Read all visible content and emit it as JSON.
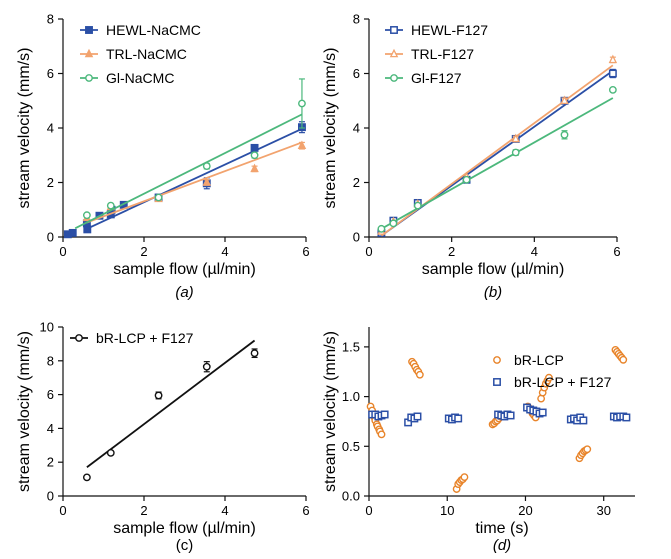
{
  "colors": {
    "blue": "#2B4FA6",
    "orange": "#F2A36E",
    "green": "#4CB87C",
    "black": "#111111",
    "orange_marker": "#E8842A"
  },
  "chart_data": [
    {
      "id": "a",
      "type": "scatter",
      "panel_label": "(a)",
      "xlabel": "sample flow (µl/min)",
      "ylabel": "stream velocity (mm/s)",
      "xlim": [
        0,
        6
      ],
      "ylim": [
        0,
        8
      ],
      "xticks": [
        0,
        2,
        4,
        6
      ],
      "yticks": [
        0,
        2,
        4,
        6,
        8
      ],
      "legend_position": "top-left",
      "series": [
        {
          "name": "HEWL-NaCMC",
          "color": "#2B4FA6",
          "marker": "square-filled",
          "x": [
            0.12,
            0.24,
            0.59,
            0.6,
            0.9,
            1.18,
            1.2,
            1.5,
            2.36,
            3.55,
            4.73,
            5.9
          ],
          "y": [
            0.1,
            0.15,
            0.5,
            0.28,
            0.78,
            0.83,
            1.0,
            1.18,
            1.45,
            1.97,
            3.27,
            4.03
          ],
          "err": [
            0,
            0,
            0,
            0,
            0,
            0,
            0.07,
            0,
            0.05,
            0.2,
            0.1,
            0.2
          ],
          "fit": [
            [
              0.59,
              0.3
            ],
            [
              5.9,
              3.97
            ]
          ]
        },
        {
          "name": "TRL-NaCMC",
          "color": "#F2A36E",
          "marker": "triangle-filled",
          "x": [
            0.59,
            1.18,
            2.36,
            3.55,
            4.73,
            5.9
          ],
          "y": [
            0.7,
            1.1,
            1.4,
            2.0,
            2.5,
            3.35
          ],
          "err": [
            0,
            0,
            0.05,
            0.1,
            0.1,
            0.12
          ],
          "fit": [
            [
              0.59,
              0.53
            ],
            [
              5.9,
              3.47
            ]
          ]
        },
        {
          "name": "Gl-NaCMC",
          "color": "#4CB87C",
          "marker": "circle-open",
          "x": [
            0.59,
            1.18,
            2.36,
            3.55,
            4.73,
            5.9
          ],
          "y": [
            0.8,
            1.15,
            1.45,
            2.6,
            3.0,
            4.9
          ],
          "err": [
            0,
            0,
            0,
            0.1,
            0.1,
            0.9
          ],
          "fit": [
            [
              0.3,
              0.32
            ],
            [
              5.9,
              4.5
            ]
          ]
        }
      ]
    },
    {
      "id": "b",
      "type": "scatter",
      "panel_label": "(b)",
      "xlabel": "sample flow (µl/min)",
      "ylabel": "stream velocity (mm/s)",
      "xlim": [
        0,
        6
      ],
      "ylim": [
        0,
        8
      ],
      "xticks": [
        0,
        2,
        4,
        6
      ],
      "yticks": [
        0,
        2,
        4,
        6,
        8
      ],
      "legend_position": "top-left",
      "series": [
        {
          "name": "HEWL-F127",
          "color": "#2B4FA6",
          "marker": "square-open",
          "x": [
            0.3,
            0.59,
            1.18,
            2.36,
            3.55,
            4.73,
            5.9
          ],
          "y": [
            0.15,
            0.6,
            1.25,
            2.1,
            3.6,
            5.0,
            6.0
          ],
          "err": [
            0,
            0,
            0.05,
            0,
            0.1,
            0.1,
            0.15
          ],
          "fit": [
            [
              0.3,
              0.05
            ],
            [
              5.9,
              6.1
            ]
          ]
        },
        {
          "name": "TRL-F127",
          "color": "#F2A36E",
          "marker": "triangle-open",
          "x": [
            0.3,
            0.59,
            1.18,
            2.36,
            3.55,
            4.73,
            5.9
          ],
          "y": [
            0.2,
            0.55,
            1.2,
            2.2,
            3.6,
            5.0,
            6.5
          ],
          "err": [
            0,
            0,
            0,
            0,
            0.1,
            0.1,
            0.1
          ],
          "fit": [
            [
              0.3,
              0.05
            ],
            [
              5.9,
              6.3
            ]
          ]
        },
        {
          "name": "Gl-F127",
          "color": "#4CB87C",
          "marker": "circle-open",
          "x": [
            0.3,
            0.59,
            1.18,
            2.36,
            3.55,
            4.73,
            5.9
          ],
          "y": [
            0.3,
            0.5,
            1.15,
            2.1,
            3.1,
            3.75,
            5.4
          ],
          "err": [
            0,
            0,
            0,
            0,
            0.1,
            0.15,
            0
          ],
          "fit": [
            [
              0.3,
              0.3
            ],
            [
              5.9,
              5.1
            ]
          ]
        }
      ]
    },
    {
      "id": "c",
      "type": "scatter",
      "panel_label": "(c)",
      "xlabel": "sample flow (µl/min)",
      "ylabel": "stream velocity (mm/s)",
      "xlim": [
        0,
        6
      ],
      "ylim": [
        0,
        10
      ],
      "xticks": [
        0,
        2,
        4,
        6
      ],
      "yticks": [
        0,
        2,
        4,
        6,
        8,
        10
      ],
      "legend_position": "top-left",
      "series": [
        {
          "name": "bR-LCP + F127",
          "color": "#111111",
          "marker": "circle-open",
          "x": [
            0.59,
            1.18,
            2.36,
            3.55,
            4.73
          ],
          "y": [
            1.1,
            2.55,
            5.95,
            7.65,
            8.45
          ],
          "err": [
            0,
            0.1,
            0.2,
            0.3,
            0.25
          ],
          "fit": [
            [
              0.59,
              1.7
            ],
            [
              4.73,
              9.2
            ]
          ]
        }
      ]
    },
    {
      "id": "d",
      "type": "scatter",
      "panel_label": "(d)",
      "xlabel": "time (s)",
      "ylabel": "stream velocity (mm/s)",
      "xlim": [
        0,
        34
      ],
      "ylim": [
        0,
        1.7
      ],
      "xticks": [
        0,
        10,
        20,
        30
      ],
      "yticks": [
        0.0,
        0.5,
        1.0,
        1.5
      ],
      "ytick_labels": [
        "0.0",
        "0.5",
        "1.0",
        "1.5"
      ],
      "legend_position": "top-right",
      "series": [
        {
          "name": "bR-LCP",
          "color": "#E8842A",
          "marker": "circle-open",
          "x": [
            0.2,
            0.4,
            0.5,
            0.7,
            0.8,
            1.0,
            1.1,
            1.3,
            1.4,
            1.6,
            5.5,
            5.7,
            5.9,
            6.1,
            6.3,
            6.5,
            11.2,
            11.4,
            11.6,
            11.8,
            12.0,
            12.2,
            15.8,
            16.0,
            16.2,
            16.4,
            16.6,
            16.8,
            20.3,
            20.5,
            20.7,
            20.9,
            21.1,
            21.3,
            22.0,
            22.2,
            22.4,
            22.6,
            22.8,
            23.0,
            26.9,
            27.1,
            27.3,
            27.5,
            27.7,
            27.9,
            31.5,
            31.7,
            31.9,
            32.1,
            32.3,
            32.5
          ],
          "y": [
            0.9,
            0.86,
            0.82,
            0.79,
            0.76,
            0.72,
            0.7,
            0.67,
            0.65,
            0.62,
            1.35,
            1.33,
            1.3,
            1.27,
            1.25,
            1.22,
            0.07,
            0.12,
            0.14,
            0.16,
            0.17,
            0.19,
            0.72,
            0.73,
            0.75,
            0.76,
            0.78,
            0.8,
            0.9,
            0.88,
            0.86,
            0.83,
            0.81,
            0.79,
            0.98,
            1.04,
            1.09,
            1.13,
            1.16,
            1.19,
            0.38,
            0.41,
            0.43,
            0.45,
            0.46,
            0.47,
            1.47,
            1.45,
            1.43,
            1.41,
            1.39,
            1.37
          ]
        },
        {
          "name": "bR-LCP + F127",
          "color": "#2B4FA6",
          "marker": "square-open",
          "x": [
            0.4,
            0.8,
            1.2,
            1.6,
            2.0,
            5.0,
            5.4,
            5.8,
            6.2,
            10.2,
            10.6,
            11.0,
            11.4,
            16.5,
            16.9,
            17.3,
            17.7,
            18.1,
            20.2,
            20.6,
            21.0,
            21.4,
            21.8,
            22.2,
            25.8,
            26.2,
            26.6,
            27.0,
            27.4,
            31.3,
            31.7,
            32.1,
            32.5,
            32.9
          ],
          "y": [
            0.82,
            0.82,
            0.8,
            0.81,
            0.82,
            0.74,
            0.79,
            0.78,
            0.8,
            0.78,
            0.77,
            0.79,
            0.78,
            0.82,
            0.81,
            0.8,
            0.82,
            0.81,
            0.89,
            0.87,
            0.86,
            0.85,
            0.83,
            0.84,
            0.77,
            0.78,
            0.76,
            0.79,
            0.76,
            0.8,
            0.79,
            0.8,
            0.8,
            0.79
          ]
        }
      ]
    }
  ]
}
